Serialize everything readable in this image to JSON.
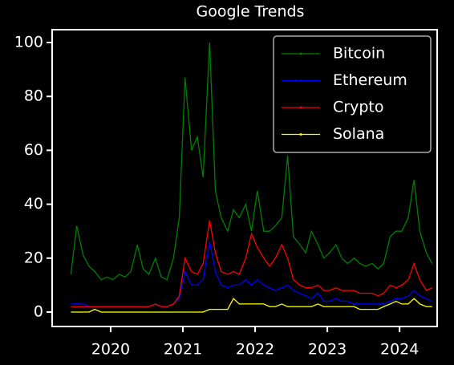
{
  "chart_data": {
    "type": "line",
    "title": "Google Trends",
    "x": [
      2019.45,
      2019.53,
      2019.62,
      2019.7,
      2019.78,
      2019.87,
      2019.95,
      2020.03,
      2020.12,
      2020.2,
      2020.28,
      2020.37,
      2020.45,
      2020.53,
      2020.62,
      2020.7,
      2020.78,
      2020.87,
      2020.95,
      2021.03,
      2021.12,
      2021.2,
      2021.28,
      2021.37,
      2021.45,
      2021.53,
      2021.62,
      2021.7,
      2021.78,
      2021.87,
      2021.95,
      2022.03,
      2022.12,
      2022.2,
      2022.28,
      2022.37,
      2022.45,
      2022.53,
      2022.62,
      2022.7,
      2022.78,
      2022.87,
      2022.95,
      2023.03,
      2023.12,
      2023.2,
      2023.28,
      2023.37,
      2023.45,
      2023.53,
      2023.62,
      2023.7,
      2023.78,
      2023.87,
      2023.95,
      2024.03,
      2024.12,
      2024.2,
      2024.28,
      2024.37,
      2024.45
    ],
    "series": [
      {
        "name": "Bitcoin",
        "color": "#008000",
        "values": [
          14,
          32,
          21,
          17,
          15,
          12,
          13,
          12,
          14,
          13,
          15,
          25,
          16,
          14,
          20,
          13,
          12,
          20,
          35,
          87,
          60,
          65,
          50,
          100,
          45,
          35,
          30,
          38,
          35,
          40,
          30,
          45,
          30,
          30,
          32,
          35,
          58,
          28,
          25,
          22,
          30,
          25,
          20,
          22,
          25,
          20,
          18,
          20,
          18,
          17,
          18,
          16,
          18,
          28,
          30,
          30,
          35,
          49,
          30,
          22,
          18
        ]
      },
      {
        "name": "Ethereum",
        "color": "#0000ff",
        "values": [
          3,
          3,
          3,
          2,
          2,
          2,
          2,
          2,
          2,
          2,
          2,
          2,
          2,
          2,
          3,
          2,
          2,
          3,
          5,
          15,
          10,
          10,
          12,
          26,
          15,
          10,
          9,
          10,
          10,
          12,
          10,
          12,
          10,
          9,
          8,
          9,
          10,
          8,
          7,
          6,
          5,
          7,
          4,
          4,
          5,
          4,
          4,
          3,
          3,
          3,
          3,
          3,
          3,
          4,
          5,
          5,
          6,
          8,
          6,
          5,
          4
        ]
      },
      {
        "name": "Crypto",
        "color": "#ff0000",
        "values": [
          2,
          2,
          2,
          2,
          2,
          2,
          2,
          2,
          2,
          2,
          2,
          2,
          2,
          2,
          3,
          2,
          2,
          3,
          6,
          20,
          15,
          14,
          18,
          34,
          22,
          15,
          14,
          15,
          14,
          20,
          29,
          24,
          20,
          17,
          20,
          25,
          20,
          12,
          10,
          9,
          9,
          10,
          8,
          8,
          9,
          8,
          8,
          8,
          7,
          7,
          7,
          6,
          7,
          10,
          9,
          10,
          12,
          18,
          12,
          8,
          9
        ]
      },
      {
        "name": "Solana",
        "color": "#ffff00",
        "values": [
          0,
          0,
          0,
          0,
          1,
          0,
          0,
          0,
          0,
          0,
          0,
          0,
          0,
          0,
          0,
          0,
          0,
          0,
          0,
          0,
          0,
          0,
          0,
          1,
          1,
          1,
          1,
          5,
          3,
          3,
          3,
          3,
          3,
          2,
          2,
          3,
          2,
          2,
          2,
          2,
          2,
          3,
          2,
          2,
          2,
          2,
          2,
          2,
          1,
          1,
          1,
          1,
          2,
          3,
          4,
          3,
          3,
          5,
          3,
          2,
          2
        ]
      }
    ],
    "xlim": [
      2019.19,
      2024.52
    ],
    "xticks": [
      2020,
      2021,
      2022,
      2023,
      2024
    ],
    "ylim": [
      -5.36,
      104.76
    ],
    "yticks": [
      0,
      20,
      40,
      60,
      80,
      100
    ],
    "legend": "upper right"
  }
}
